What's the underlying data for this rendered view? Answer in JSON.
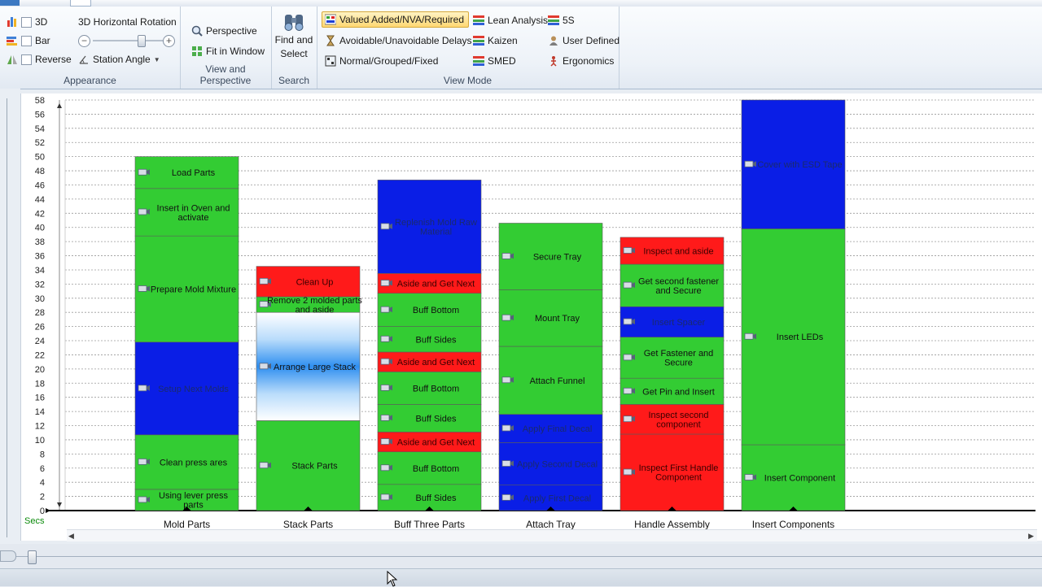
{
  "ribbon": {
    "appearance": {
      "label": "Appearance",
      "checkboxes": [
        "3D",
        "Bar",
        "Reverse"
      ],
      "rotation_label": "3D Horizontal Rotation",
      "station_angle": "Station Angle"
    },
    "view_perspective": {
      "label": "View and Perspective",
      "perspective": "Perspective",
      "fit": "Fit in Window"
    },
    "search": {
      "label": "Search",
      "find_line1": "Find and",
      "find_line2": "Select"
    },
    "view_mode": {
      "label": "View Mode",
      "col1": [
        "Valued Added/NVA/Required",
        "Avoidable/Unavoidable Delays",
        "Normal/Grouped/Fixed"
      ],
      "col2": [
        "Lean Analysis",
        "Kaizen",
        "SMED"
      ],
      "col3": [
        "5S",
        "User Defined",
        "Ergonomics"
      ]
    }
  },
  "colors": {
    "va": "#33cc33",
    "nva": "#ff1a1a",
    "required": "#0a1ee6",
    "highlight": "#ffd873"
  },
  "chart_data": {
    "type": "bar",
    "stacked": true,
    "ylabel": "Secs",
    "ylim": [
      0,
      58
    ],
    "y_ticks": [
      0,
      2,
      4,
      6,
      8,
      10,
      12,
      14,
      16,
      18,
      20,
      22,
      24,
      26,
      28,
      30,
      32,
      34,
      36,
      38,
      40,
      42,
      44,
      46,
      48,
      50,
      52,
      54,
      56,
      58
    ],
    "categories": [
      "Mold Parts",
      "Stack Parts",
      "Buff Three Parts",
      "Attach Tray",
      "Handle Assembly",
      "Insert Components"
    ],
    "stations": [
      {
        "name": "Mold Parts",
        "segments": [
          {
            "label": "Using lever press parts",
            "value": 3,
            "type": "va"
          },
          {
            "label": "Clean press ares",
            "value": 7.7,
            "type": "va"
          },
          {
            "label": "Setup Next Molds",
            "value": 13.1,
            "type": "required"
          },
          {
            "label": "Prepare Mold Mixture",
            "value": 15,
            "type": "va"
          },
          {
            "label": "Insert in Oven and activate",
            "value": 6.7,
            "type": "va"
          },
          {
            "label": "Load Parts",
            "value": 4.5,
            "type": "va"
          }
        ]
      },
      {
        "name": "Stack Parts",
        "segments": [
          {
            "label": "Stack Parts",
            "value": 12.7,
            "type": "va"
          },
          {
            "label": "Arrange Large Stack",
            "value": 15.3,
            "type": "required-gradient"
          },
          {
            "label": "Remove 2 molded parts and aside",
            "value": 2.2,
            "type": "va"
          },
          {
            "label": "Clean Up",
            "value": 4.3,
            "type": "nva"
          }
        ]
      },
      {
        "name": "Buff Three Parts",
        "segments": [
          {
            "label": "Buff Sides",
            "value": 3.7,
            "type": "va"
          },
          {
            "label": "Buff Bottom",
            "value": 4.6,
            "type": "va"
          },
          {
            "label": "Aside and Get Next",
            "value": 2.8,
            "type": "nva"
          },
          {
            "label": "Buff Sides",
            "value": 3.9,
            "type": "va"
          },
          {
            "label": "Buff Bottom",
            "value": 4.6,
            "type": "va"
          },
          {
            "label": "Aside and Get Next",
            "value": 2.8,
            "type": "nva"
          },
          {
            "label": "Buff Sides",
            "value": 3.6,
            "type": "va"
          },
          {
            "label": "Buff Bottom",
            "value": 4.7,
            "type": "va"
          },
          {
            "label": "Aside and Get Next",
            "value": 2.8,
            "type": "nva"
          },
          {
            "label": "Replenish Mold Raw Material",
            "value": 13.2,
            "type": "required"
          }
        ]
      },
      {
        "name": "Attach Tray",
        "segments": [
          {
            "label": "Apply First Decal",
            "value": 3.6,
            "type": "required"
          },
          {
            "label": "Apply Second Decal",
            "value": 6,
            "type": "required"
          },
          {
            "label": "Apply Final Decal",
            "value": 4,
            "type": "required"
          },
          {
            "label": "Attach Funnel",
            "value": 9.6,
            "type": "va"
          },
          {
            "label": "Mount Tray",
            "value": 8,
            "type": "va"
          },
          {
            "label": "Secure Tray",
            "value": 9.4,
            "type": "va"
          }
        ]
      },
      {
        "name": "Handle Assembly",
        "segments": [
          {
            "label": "Inspect First Handle Component",
            "value": 10.8,
            "type": "nva"
          },
          {
            "label": "Inspect second component",
            "value": 4.2,
            "type": "nva"
          },
          {
            "label": "Get Pin and Insert",
            "value": 3.7,
            "type": "va"
          },
          {
            "label": "Get Fastener and Secure",
            "value": 5.8,
            "type": "va"
          },
          {
            "label": "Insert Spacer",
            "value": 4.3,
            "type": "required"
          },
          {
            "label": "Get second fastener and Secure",
            "value": 6,
            "type": "va"
          },
          {
            "label": "Inspect and aside",
            "value": 3.8,
            "type": "nva"
          }
        ]
      },
      {
        "name": "Insert Components",
        "segments": [
          {
            "label": "Insert Component",
            "value": 9.3,
            "type": "va"
          },
          {
            "label": "Insert LEDs",
            "value": 30.5,
            "type": "va"
          },
          {
            "label": "Cover with ESD Tape",
            "value": 18.2,
            "type": "required"
          }
        ]
      }
    ]
  }
}
